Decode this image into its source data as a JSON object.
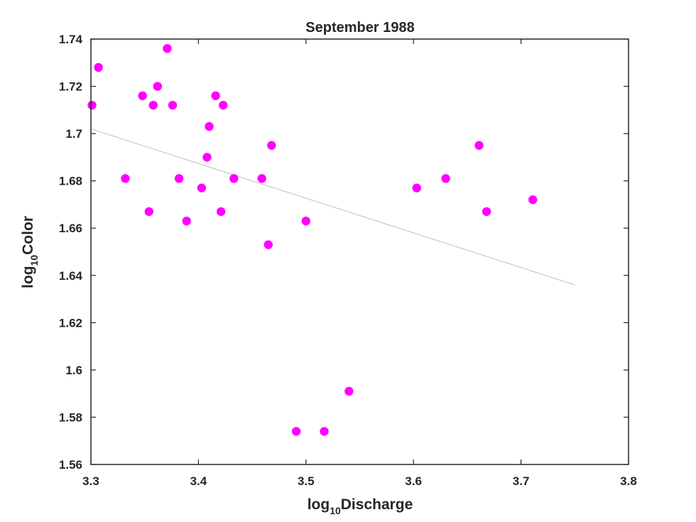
{
  "chart_data": {
    "type": "scatter",
    "title": "September 1988",
    "xlabel": {
      "prefix": "log",
      "subscript": "10",
      "suffix": "Discharge"
    },
    "ylabel": {
      "prefix": "log",
      "subscript": "10",
      "suffix": "Color"
    },
    "xlim": [
      3.3,
      3.8
    ],
    "ylim": [
      1.56,
      1.74
    ],
    "xticks": [
      3.3,
      3.4,
      3.5,
      3.6,
      3.7,
      3.8
    ],
    "xtick_labels": [
      "3.3",
      "3.4",
      "3.5",
      "3.6",
      "3.7",
      "3.8"
    ],
    "yticks": [
      1.56,
      1.58,
      1.6,
      1.62,
      1.64,
      1.66,
      1.68,
      1.7,
      1.72,
      1.74
    ],
    "ytick_labels": [
      "1.56",
      "1.58",
      "1.6",
      "1.62",
      "1.64",
      "1.66",
      "1.68",
      "1.7",
      "1.72",
      "1.74"
    ],
    "grid": false,
    "marker_color": "#ff00ff",
    "trend_color": "#bdbdbd",
    "axis_color": "#262626",
    "points": [
      [
        3.301,
        1.712
      ],
      [
        3.307,
        1.728
      ],
      [
        3.332,
        1.681
      ],
      [
        3.348,
        1.716
      ],
      [
        3.354,
        1.667
      ],
      [
        3.358,
        1.712
      ],
      [
        3.362,
        1.72
      ],
      [
        3.371,
        1.736
      ],
      [
        3.376,
        1.712
      ],
      [
        3.382,
        1.681
      ],
      [
        3.389,
        1.663
      ],
      [
        3.403,
        1.677
      ],
      [
        3.408,
        1.69
      ],
      [
        3.41,
        1.703
      ],
      [
        3.416,
        1.716
      ],
      [
        3.421,
        1.667
      ],
      [
        3.423,
        1.712
      ],
      [
        3.433,
        1.681
      ],
      [
        3.459,
        1.681
      ],
      [
        3.465,
        1.653
      ],
      [
        3.468,
        1.695
      ],
      [
        3.491,
        1.574
      ],
      [
        3.5,
        1.663
      ],
      [
        3.517,
        1.574
      ],
      [
        3.54,
        1.591
      ],
      [
        3.603,
        1.677
      ],
      [
        3.63,
        1.681
      ],
      [
        3.661,
        1.695
      ],
      [
        3.668,
        1.667
      ],
      [
        3.711,
        1.672
      ]
    ],
    "trend_line": [
      [
        3.3,
        1.702
      ],
      [
        3.75,
        1.636
      ]
    ]
  }
}
